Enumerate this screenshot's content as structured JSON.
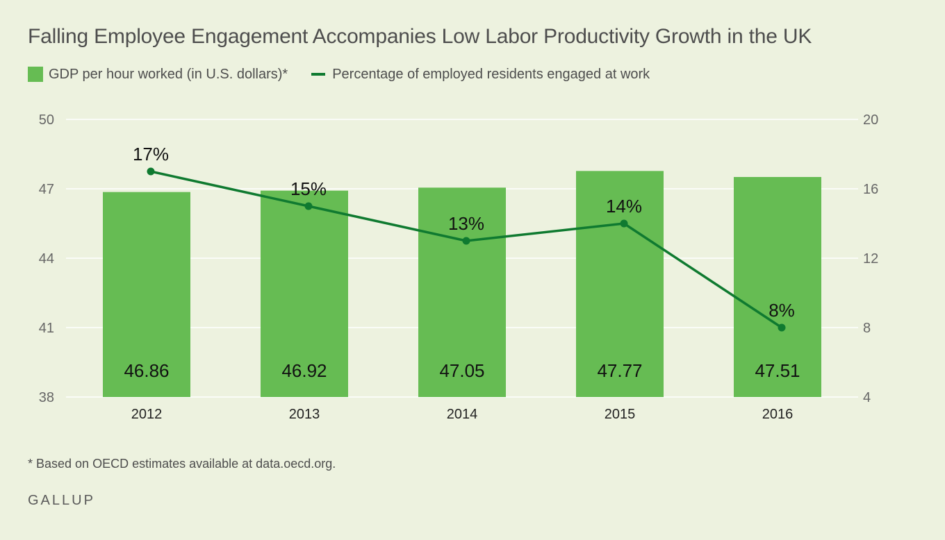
{
  "title": "Falling Employee Engagement Accompanies Low Labor Productivity Growth in the UK",
  "legend": {
    "bar_label": "GDP per hour worked (in U.S. dollars)*",
    "line_label": "Percentage of employed residents engaged at work"
  },
  "colors": {
    "bar": "#66bc53",
    "line": "#0f7a30",
    "label_dark": "#111111",
    "axis_text": "#666666",
    "grid": "#ffffff"
  },
  "chart_data": {
    "type": "bar",
    "title": "Falling Employee Engagement Accompanies Low Labor Productivity Growth in the UK",
    "categories": [
      "2012",
      "2013",
      "2014",
      "2015",
      "2016"
    ],
    "series": [
      {
        "name": "GDP per hour worked (in U.S. dollars)*",
        "type": "bar",
        "axis": "left",
        "values": [
          46.86,
          46.92,
          47.05,
          47.77,
          47.51
        ],
        "labels": [
          "46.86",
          "46.92",
          "47.05",
          "47.77",
          "47.51"
        ]
      },
      {
        "name": "Percentage of employed residents engaged at work",
        "type": "line",
        "axis": "right",
        "values": [
          17,
          15,
          13,
          14,
          8
        ],
        "labels": [
          "17%",
          "15%",
          "13%",
          "14%",
          "8%"
        ]
      }
    ],
    "y_left": {
      "ylim": [
        38,
        50
      ],
      "ticks": [
        38,
        41,
        44,
        47,
        50
      ],
      "tick_labels": [
        "38",
        "41",
        "44",
        "47",
        "50"
      ]
    },
    "y_right": {
      "ylim": [
        4,
        20
      ],
      "ticks": [
        4,
        8,
        12,
        16,
        20
      ],
      "tick_labels": [
        "4",
        "8",
        "12",
        "16",
        "20"
      ]
    },
    "xlabel": "",
    "ylabel": "",
    "grid": true,
    "legend_position": "top-left"
  },
  "footnote": "* Based on OECD estimates available at data.oecd.org.",
  "source_logo": "GALLUP"
}
